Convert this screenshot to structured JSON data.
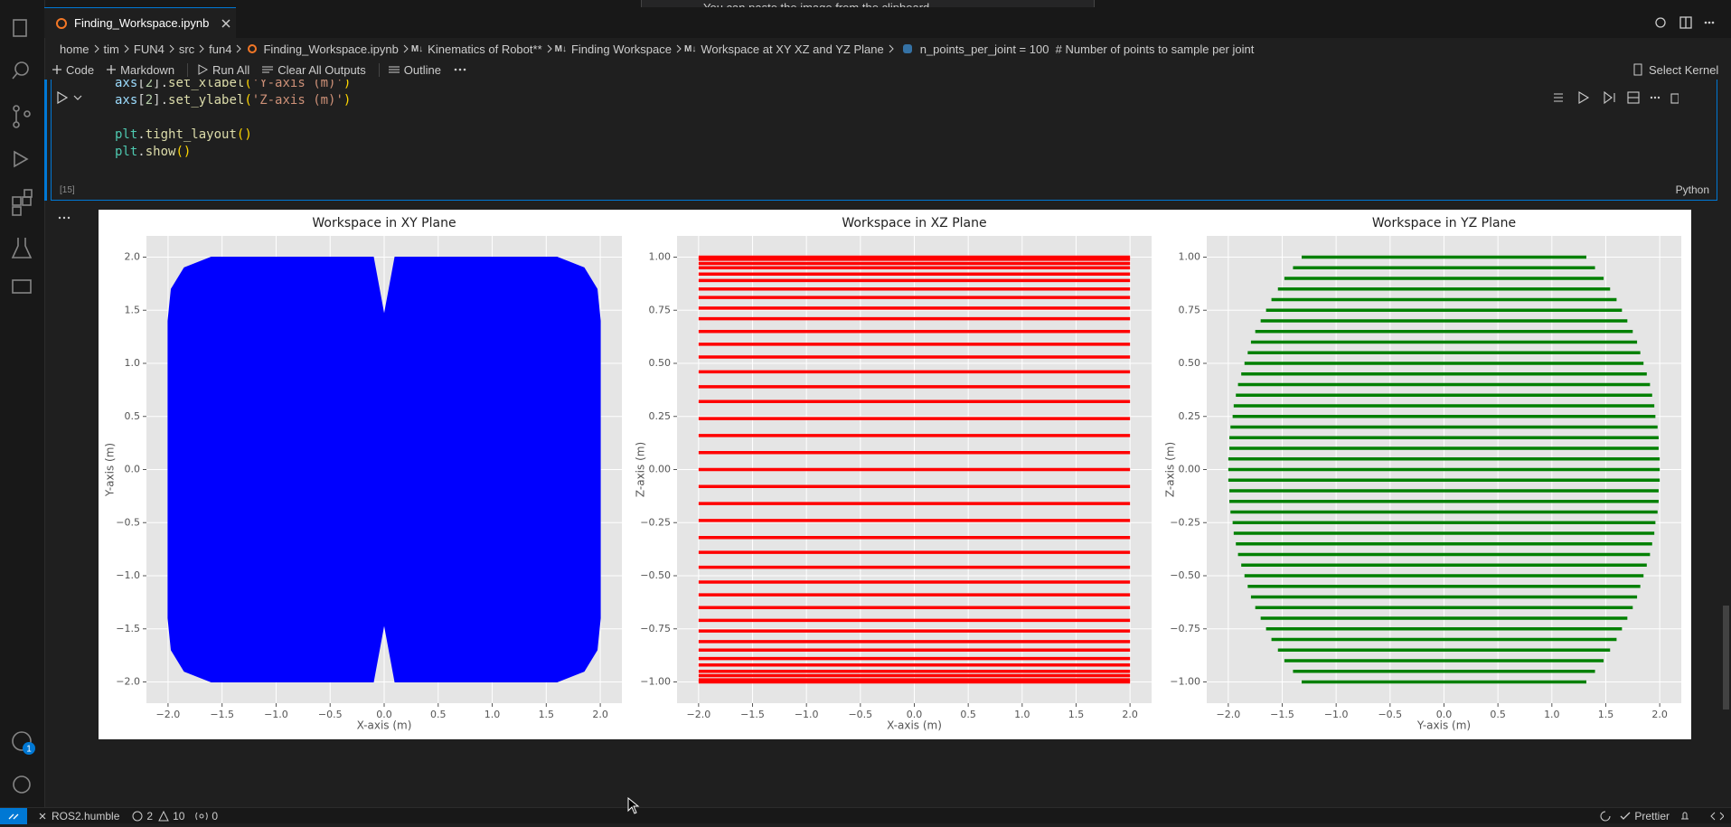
{
  "notification": "You can paste the image from the clipboard.",
  "tab": {
    "title": "Finding_Workspace.ipynb"
  },
  "breadcrumbs": [
    "home",
    "tim",
    "FUN4",
    "src",
    "fun4",
    "Finding_Workspace.ipynb",
    "Kinematics of Robot**",
    "Finding Workspace",
    "Workspace at XY XZ and YZ Plane",
    "n_points_per_joint = 100  # Number of points to sample per joint"
  ],
  "markdown_icon": "M↓",
  "toolbar": [
    "Code",
    "Markdown",
    "Run All",
    "Clear All Outputs",
    "Outline"
  ],
  "kernel": "Select Kernel",
  "cell": {
    "lines": [
      [
        {
          "text": "axs",
          "color": "#9cdcfe"
        },
        {
          "text": "[",
          "color": "#d4d4d4"
        },
        {
          "text": "2",
          "color": "#b5cea8"
        },
        {
          "text": "].",
          "color": "#d4d4d4"
        },
        {
          "text": "set_xlabel",
          "color": "#dcdcaa"
        },
        {
          "text": "(",
          "color": "#ffd700"
        },
        {
          "text": "'Y-axis (m)'",
          "color": "#ce9178"
        },
        {
          "text": ")",
          "color": "#ffd700"
        }
      ],
      [
        {
          "text": "axs",
          "color": "#9cdcfe"
        },
        {
          "text": "[",
          "color": "#d4d4d4"
        },
        {
          "text": "2",
          "color": "#b5cea8"
        },
        {
          "text": "].",
          "color": "#d4d4d4"
        },
        {
          "text": "set_ylabel",
          "color": "#dcdcaa"
        },
        {
          "text": "(",
          "color": "#ffd700"
        },
        {
          "text": "'Z-axis (m)'",
          "color": "#ce9178"
        },
        {
          "text": ")",
          "color": "#ffd700"
        }
      ],
      [],
      [
        {
          "text": "plt",
          "color": "#4ec9b0"
        },
        {
          "text": ".",
          "color": "#d4d4d4"
        },
        {
          "text": "tight_layout",
          "color": "#dcdcaa"
        },
        {
          "text": "()",
          "color": "#ffd700"
        }
      ],
      [
        {
          "text": "plt",
          "color": "#4ec9b0"
        },
        {
          "text": ".",
          "color": "#d4d4d4"
        },
        {
          "text": "show",
          "color": "#dcdcaa"
        },
        {
          "text": "()",
          "color": "#ffd700"
        }
      ]
    ],
    "execution_count": "[15]",
    "language": "Python"
  },
  "accounts_badge": "1",
  "status_bar": {
    "remote": "ROS2.humble",
    "errors": "2",
    "warnings": "10",
    "ports": "0",
    "formatter": "Prettier"
  },
  "chart_data": [
    {
      "type": "area",
      "title": "Workspace in XY Plane",
      "x_label": "X-axis (m)",
      "y_label": "Y-axis (m)",
      "color": "#0000ff",
      "x": [
        -1.6,
        -0.1,
        0,
        0.1,
        1.6,
        1.85,
        1.97,
        2,
        2,
        1.97,
        1.85,
        1.6,
        0.1,
        0,
        -0.1,
        -1.6,
        -1.85,
        -1.97,
        -2,
        -2,
        -1.97,
        -1.85
      ],
      "values": [
        2,
        2,
        1.45,
        2,
        2,
        1.9,
        1.7,
        1.4,
        -1.4,
        -1.7,
        -1.9,
        -2,
        -2,
        -1.45,
        -2,
        -2,
        -1.9,
        -1.7,
        -1.4,
        1.4,
        1.7,
        1.9
      ],
      "xlim": [
        -2.2,
        2.2
      ],
      "ylim": [
        -2.2,
        2.2
      ],
      "xticks": [
        {
          "value": -2,
          "label": "−2.0"
        },
        {
          "value": -1.5,
          "label": "−1.5"
        },
        {
          "value": -1,
          "label": "−1.0"
        },
        {
          "value": -0.5,
          "label": "−0.5"
        },
        {
          "value": 0,
          "label": "0.0"
        },
        {
          "value": 0.5,
          "label": "0.5"
        },
        {
          "value": 1,
          "label": "1.0"
        },
        {
          "value": 1.5,
          "label": "1.5"
        },
        {
          "value": 2,
          "label": "2.0"
        }
      ],
      "yticks": [
        {
          "value": -2,
          "label": "−2.0"
        },
        {
          "value": -1.5,
          "label": "−1.5"
        },
        {
          "value": -1,
          "label": "−1.0"
        },
        {
          "value": -0.5,
          "label": "−0.5"
        },
        {
          "value": 0,
          "label": "0.0"
        },
        {
          "value": 0.5,
          "label": "0.5"
        },
        {
          "value": 1,
          "label": "1.0"
        },
        {
          "value": 1.5,
          "label": "1.5"
        },
        {
          "value": 2,
          "label": "2.0"
        }
      ],
      "grid": true
    },
    {
      "type": "hlines",
      "title": "Workspace in XZ Plane",
      "x_label": "X-axis (m)",
      "y_label": "Z-axis (m)",
      "color": "#ff0000",
      "values": [
        -1,
        -0.99,
        -0.97,
        -0.95,
        -0.92,
        -0.89,
        -0.85,
        -0.81,
        -0.76,
        -0.71,
        -0.65,
        -0.59,
        -0.53,
        -0.46,
        -0.39,
        -0.32,
        -0.24,
        -0.16,
        -0.08,
        0,
        0.08,
        0.16,
        0.24,
        0.32,
        0.39,
        0.46,
        0.53,
        0.59,
        0.65,
        0.71,
        0.76,
        0.81,
        0.85,
        0.89,
        0.92,
        0.95,
        0.97,
        0.99,
        1
      ],
      "xmin": -2,
      "xmax": 2,
      "xlim": [
        -2.2,
        2.2
      ],
      "ylim": [
        -1.1,
        1.1
      ],
      "xticks": [
        {
          "value": -2,
          "label": "−2.0"
        },
        {
          "value": -1.5,
          "label": "−1.5"
        },
        {
          "value": -1,
          "label": "−1.0"
        },
        {
          "value": -0.5,
          "label": "−0.5"
        },
        {
          "value": 0,
          "label": "0.0"
        },
        {
          "value": 0.5,
          "label": "0.5"
        },
        {
          "value": 1,
          "label": "1.0"
        },
        {
          "value": 1.5,
          "label": "1.5"
        },
        {
          "value": 2,
          "label": "2.0"
        }
      ],
      "yticks": [
        {
          "value": -1,
          "label": "−1.00"
        },
        {
          "value": -0.75,
          "label": "−0.75"
        },
        {
          "value": -0.5,
          "label": "−0.50"
        },
        {
          "value": -0.25,
          "label": "−0.25"
        },
        {
          "value": 0,
          "label": "0.00"
        },
        {
          "value": 0.25,
          "label": "0.25"
        },
        {
          "value": 0.5,
          "label": "0.50"
        },
        {
          "value": 0.75,
          "label": "0.75"
        },
        {
          "value": 1,
          "label": "1.00"
        }
      ],
      "grid": true
    },
    {
      "type": "hlines",
      "title": "Workspace in YZ Plane",
      "x_label": "Y-axis (m)",
      "y_label": "Z-axis (m)",
      "color": "#008000",
      "values": [
        -1,
        -0.95,
        -0.9,
        -0.85,
        -0.8,
        -0.75,
        -0.7,
        -0.65,
        -0.6,
        -0.55,
        -0.5,
        -0.45,
        -0.4,
        -0.35,
        -0.3,
        -0.25,
        -0.2,
        -0.15,
        -0.1,
        -0.05,
        0,
        0.05,
        0.1,
        0.15,
        0.2,
        0.25,
        0.3,
        0.35,
        0.4,
        0.45,
        0.5,
        0.55,
        0.6,
        0.65,
        0.7,
        0.75,
        0.8,
        0.85,
        0.9,
        0.95,
        1
      ],
      "xmin": [
        -1.32,
        -1.4,
        -1.48,
        -1.54,
        -1.6,
        -1.65,
        -1.7,
        -1.75,
        -1.79,
        -1.82,
        -1.85,
        -1.88,
        -1.91,
        -1.93,
        -1.95,
        -1.96,
        -1.98,
        -1.99,
        -1.99,
        -2,
        -2,
        -2,
        -1.99,
        -1.99,
        -1.98,
        -1.96,
        -1.95,
        -1.93,
        -1.91,
        -1.88,
        -1.85,
        -1.82,
        -1.79,
        -1.75,
        -1.7,
        -1.65,
        -1.6,
        -1.54,
        -1.48,
        -1.4,
        -1.32
      ],
      "xmax": [
        1.32,
        1.4,
        1.48,
        1.54,
        1.6,
        1.65,
        1.7,
        1.75,
        1.79,
        1.82,
        1.85,
        1.88,
        1.91,
        1.93,
        1.95,
        1.96,
        1.98,
        1.99,
        1.99,
        2,
        2,
        2,
        1.99,
        1.99,
        1.98,
        1.96,
        1.95,
        1.93,
        1.91,
        1.88,
        1.85,
        1.82,
        1.79,
        1.75,
        1.7,
        1.65,
        1.6,
        1.54,
        1.48,
        1.4,
        1.32
      ],
      "xlim": [
        -2.2,
        2.2
      ],
      "ylim": [
        -1.1,
        1.1
      ],
      "xticks": [
        {
          "value": -2,
          "label": "−2.0"
        },
        {
          "value": -1.5,
          "label": "−1.5"
        },
        {
          "value": -1,
          "label": "−1.0"
        },
        {
          "value": -0.5,
          "label": "−0.5"
        },
        {
          "value": 0,
          "label": "0.0"
        },
        {
          "value": 0.5,
          "label": "0.5"
        },
        {
          "value": 1,
          "label": "1.0"
        },
        {
          "value": 1.5,
          "label": "1.5"
        },
        {
          "value": 2,
          "label": "2.0"
        }
      ],
      "yticks": [
        {
          "value": -1,
          "label": "−1.00"
        },
        {
          "value": -0.75,
          "label": "−0.75"
        },
        {
          "value": -0.5,
          "label": "−0.50"
        },
        {
          "value": -0.25,
          "label": "−0.25"
        },
        {
          "value": 0,
          "label": "0.00"
        },
        {
          "value": 0.25,
          "label": "0.25"
        },
        {
          "value": 0.5,
          "label": "0.50"
        },
        {
          "value": 0.75,
          "label": "0.75"
        },
        {
          "value": 1,
          "label": "1.00"
        }
      ],
      "grid": true
    }
  ]
}
